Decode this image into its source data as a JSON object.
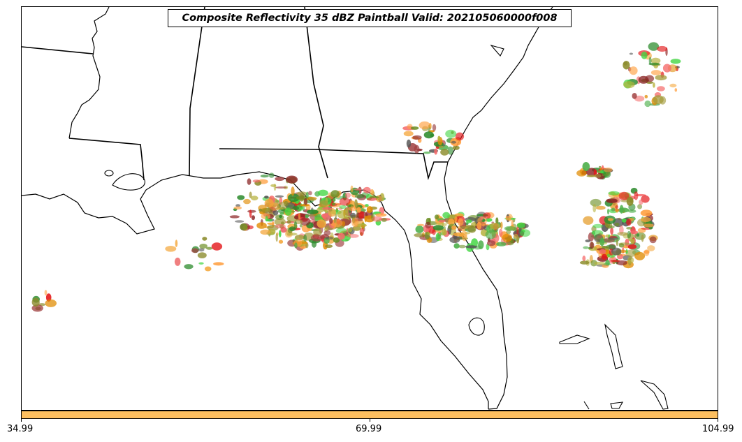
{
  "title": "Composite Reflectivity 35 dBZ Paintball Valid: 202105060000f008",
  "colorbar": {
    "color": "#fdbf5f",
    "ticks": [
      "34.99",
      "69.99",
      "104.99"
    ]
  },
  "colors": {
    "paint": [
      "#e41a1c",
      "#f56b6b",
      "#4daf4a",
      "#43d643",
      "#2a8a2a",
      "#8b8b2a",
      "#a39b3a",
      "#ff9f3f",
      "#f4a63a",
      "#e08a00",
      "#8b2525",
      "#a04040",
      "#555555",
      "#b5b03a",
      "#6b8e23"
    ],
    "coast": "#000000",
    "state_border": "#000000"
  }
}
